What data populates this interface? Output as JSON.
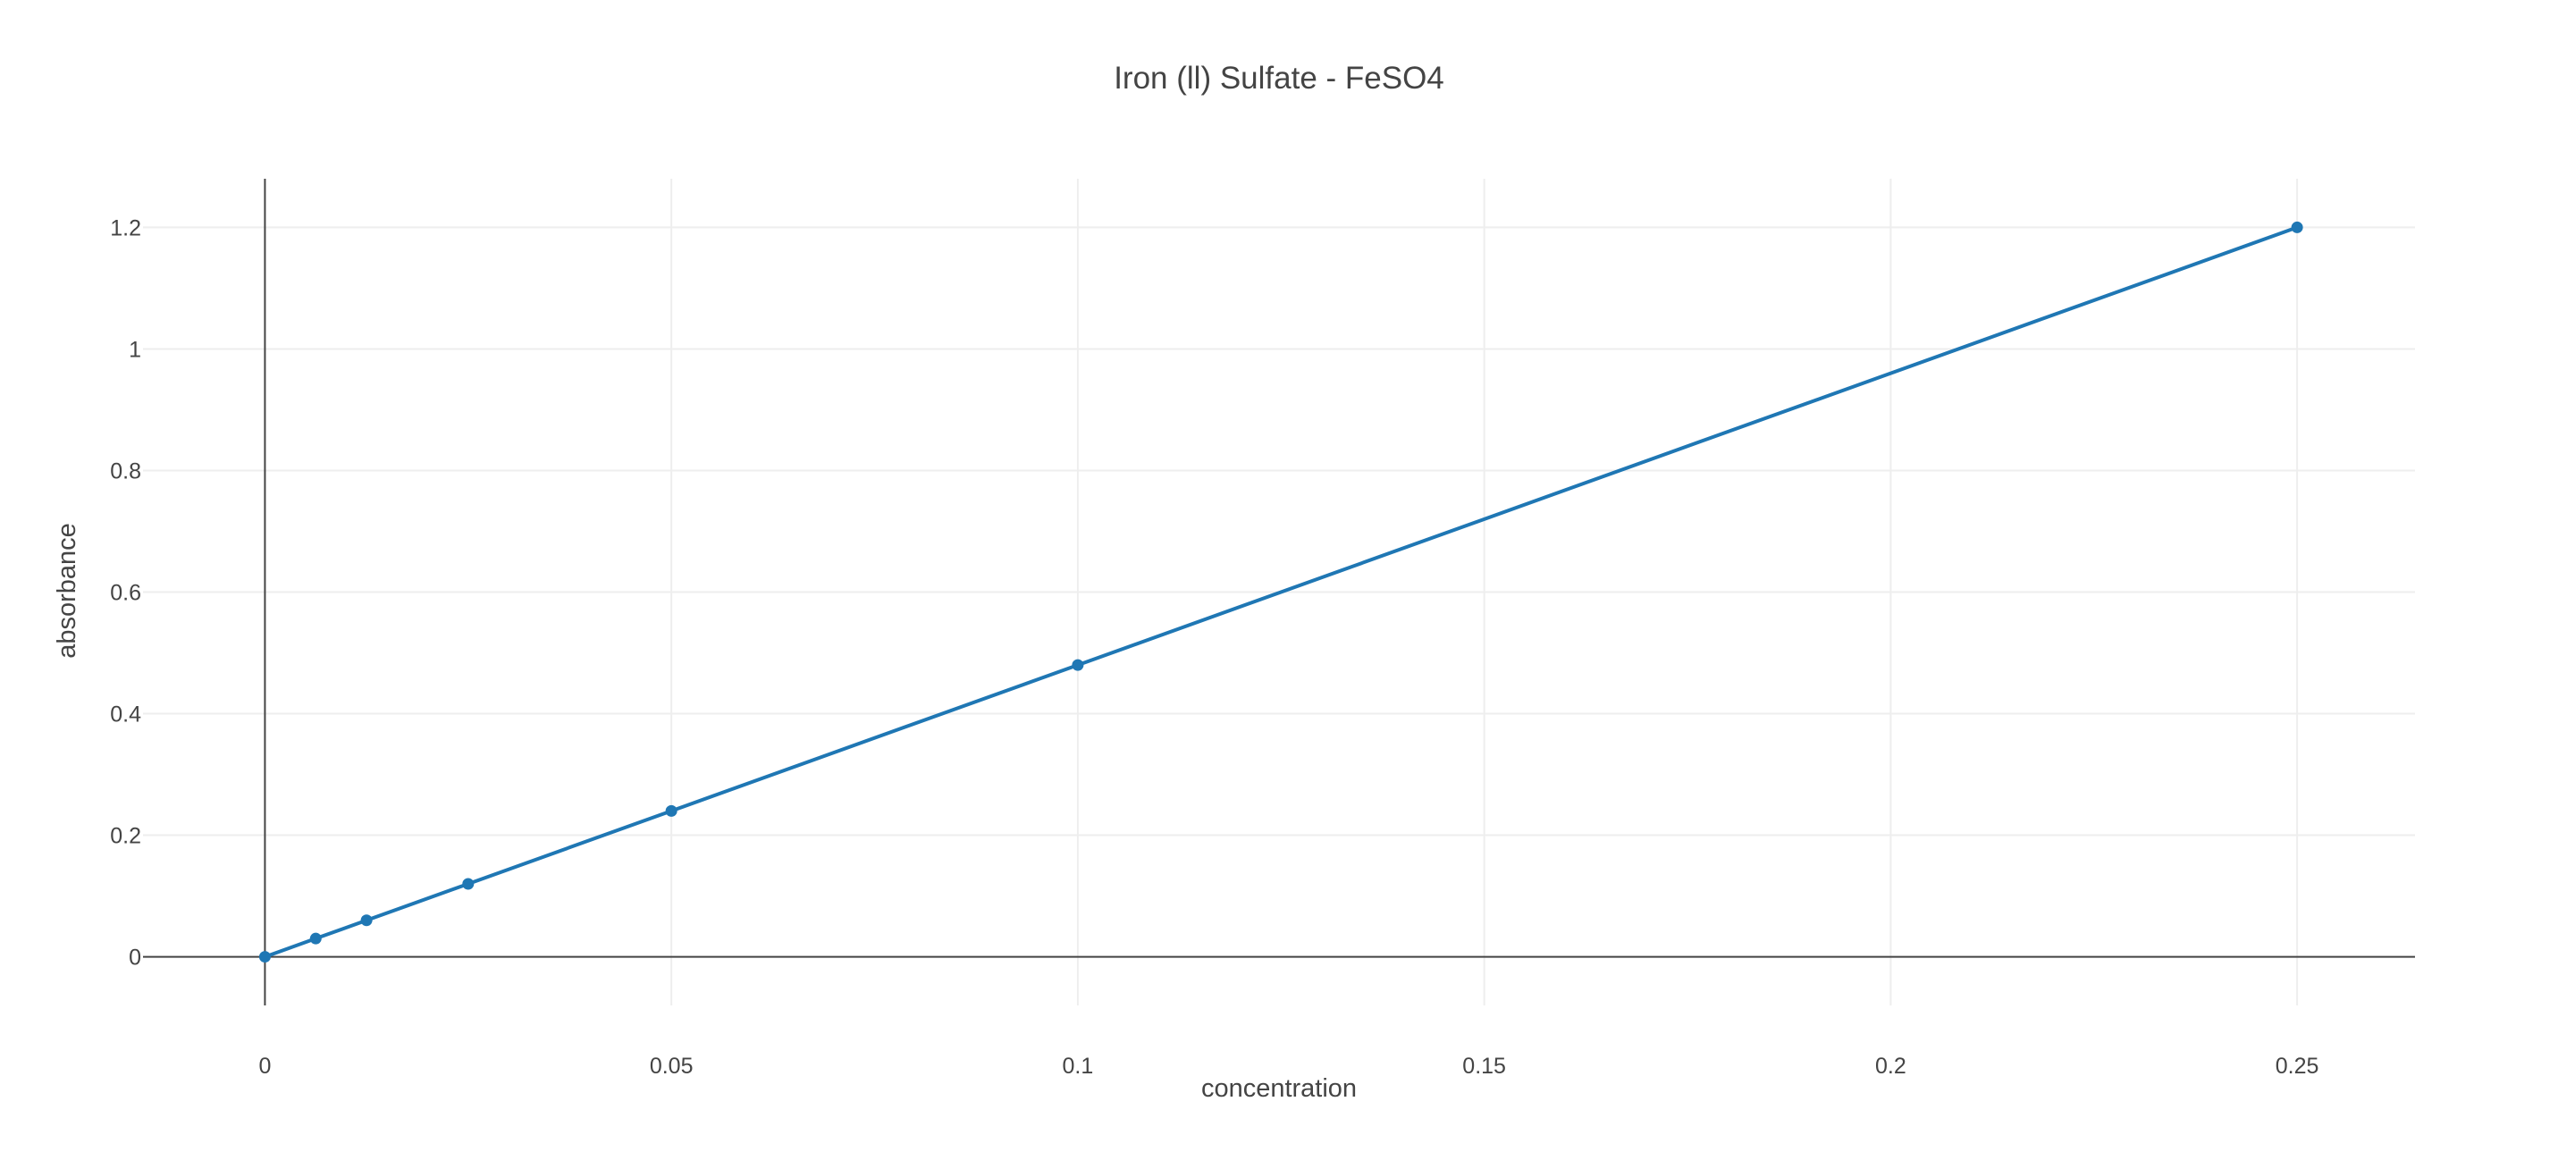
{
  "chart_data": {
    "type": "line",
    "title": "Iron (ll) Sulfate - FeSO4",
    "xlabel": "concentration",
    "ylabel": "absorbance",
    "xlim": [
      -0.015,
      0.2645
    ],
    "ylim": [
      -0.08,
      1.28
    ],
    "grid": true,
    "x_ticks": [
      0,
      0.05,
      0.1,
      0.15,
      0.2,
      0.25
    ],
    "x_tick_labels": [
      "0",
      "0.05",
      "0.1",
      "0.15",
      "0.2",
      "0.25"
    ],
    "y_ticks": [
      0,
      0.2,
      0.4,
      0.6,
      0.8,
      1,
      1.2
    ],
    "y_tick_labels": [
      "0",
      "0.2",
      "0.4",
      "0.6",
      "0.8",
      "1",
      "1.2"
    ],
    "series": [
      {
        "x": [
          0,
          0.00625,
          0.0125,
          0.025,
          0.05,
          0.1,
          0.25
        ],
        "y": [
          0,
          0.03,
          0.06,
          0.12,
          0.24,
          0.48,
          1.2
        ],
        "color": "#1f77b4",
        "mode": "lines+markers"
      }
    ],
    "colors": {
      "line": "#1f77b4",
      "grid": "#eeeeee",
      "axis": "#444444",
      "text": "#444444"
    }
  }
}
